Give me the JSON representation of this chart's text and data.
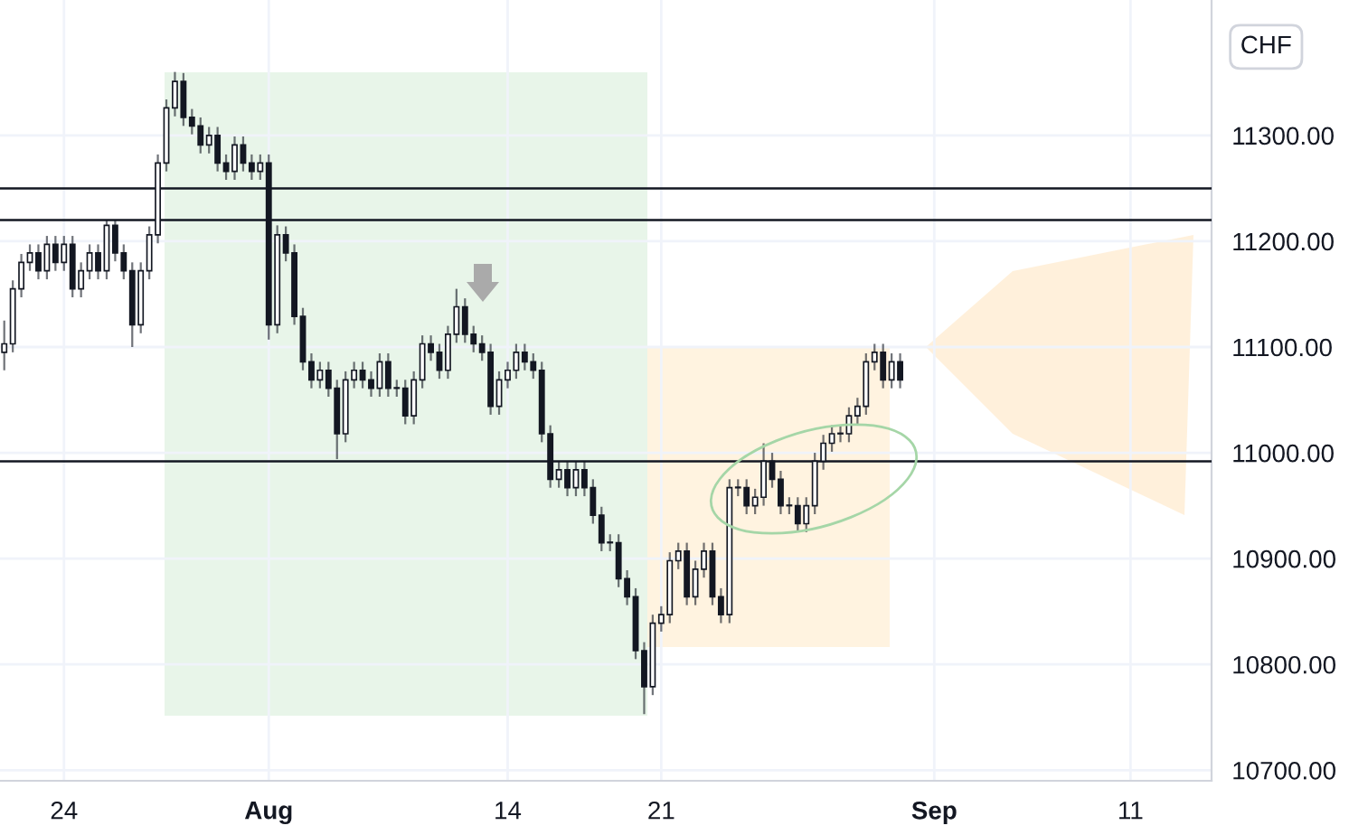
{
  "chart_data": {
    "type": "candlestick",
    "ylabel": "CHF",
    "categories": [
      null,
      null,
      null,
      null,
      null,
      null,
      null,
      "24",
      null,
      null,
      null,
      null,
      null,
      null,
      null,
      null,
      null,
      null,
      null,
      null,
      null,
      null,
      null,
      null,
      null,
      null,
      null,
      null,
      null,
      null,
      null,
      "Aug",
      null,
      null,
      null,
      null,
      null,
      null,
      null,
      null,
      null,
      null,
      null,
      null,
      null,
      null,
      null,
      null,
      null,
      null,
      null,
      null,
      null,
      null,
      null,
      null,
      null,
      null,
      null,
      "14",
      null,
      null,
      null,
      null,
      null,
      null,
      null,
      null,
      null,
      null,
      null,
      null,
      null,
      null,
      null,
      null,
      null,
      "21",
      null,
      null,
      null,
      null,
      null,
      null,
      null,
      null,
      null,
      null,
      null,
      null,
      null,
      null,
      null,
      null,
      null,
      null,
      null,
      null,
      null,
      null,
      null,
      null,
      null,
      null,
      null,
      null,
      null,
      null,
      null,
      "Sep",
      null,
      null,
      null,
      null,
      null,
      null,
      null,
      null,
      null,
      null,
      null,
      null,
      null,
      null,
      null,
      null,
      null,
      null,
      null,
      null,
      null,
      null,
      "11",
      null,
      null,
      null,
      null,
      null,
      null,
      null,
      null,
      null
    ],
    "series": [
      {
        "color": "#131722",
        "ohlc": [
          [
            11095,
            11125,
            11078,
            11103
          ],
          [
            11103,
            11163,
            11095,
            11155
          ],
          [
            11155,
            11188,
            11147,
            11180
          ],
          [
            11180,
            11197,
            11172,
            11189
          ],
          [
            11189,
            11197,
            11164,
            11172
          ],
          [
            11172,
            11205,
            11164,
            11197
          ],
          [
            11197,
            11205,
            11172,
            11180
          ],
          [
            11180,
            11205,
            11172,
            11197
          ],
          [
            11197,
            11205,
            11147,
            11155
          ],
          [
            11155,
            11180,
            11147,
            11172
          ],
          [
            11172,
            11197,
            11164,
            11189
          ],
          [
            11189,
            11197,
            11164,
            11172
          ],
          [
            11172,
            11220,
            11164,
            11215
          ],
          [
            11215,
            11220,
            11181,
            11189
          ],
          [
            11189,
            11197,
            11164,
            11172
          ],
          [
            11172,
            11180,
            11100,
            11121
          ],
          [
            11121,
            11180,
            11113,
            11172
          ],
          [
            11172,
            11214,
            11164,
            11206
          ],
          [
            11206,
            11282,
            11198,
            11274
          ],
          [
            11274,
            11334,
            11266,
            11326
          ],
          [
            11326,
            11360,
            11318,
            11351
          ],
          [
            11351,
            11359,
            11309,
            11317
          ],
          [
            11317,
            11325,
            11301,
            11309
          ],
          [
            11309,
            11317,
            11283,
            11291
          ],
          [
            11291,
            11308,
            11283,
            11300
          ],
          [
            11300,
            11308,
            11266,
            11274
          ],
          [
            11274,
            11282,
            11258,
            11266
          ],
          [
            11266,
            11299,
            11258,
            11291
          ],
          [
            11291,
            11299,
            11266,
            11274
          ],
          [
            11274,
            11282,
            11258,
            11266
          ],
          [
            11266,
            11282,
            11258,
            11274
          ],
          [
            11274,
            11282,
            11107,
            11121
          ],
          [
            11121,
            11215,
            11113,
            11206
          ],
          [
            11206,
            11214,
            11181,
            11189
          ],
          [
            11189,
            11197,
            11121,
            11129
          ],
          [
            11129,
            11137,
            11078,
            11086
          ],
          [
            11086,
            11094,
            11061,
            11069
          ],
          [
            11069,
            11086,
            11061,
            11078
          ],
          [
            11078,
            11086,
            11053,
            11061
          ],
          [
            11061,
            11069,
            10994,
            11018
          ],
          [
            11018,
            11077,
            11010,
            11069
          ],
          [
            11069,
            11086,
            11061,
            11078
          ],
          [
            11078,
            11086,
            11061,
            11069
          ],
          [
            11069,
            11077,
            11053,
            11061
          ],
          [
            11061,
            11094,
            11053,
            11086
          ],
          [
            11086,
            11094,
            11053,
            11061
          ],
          [
            11061,
            11069,
            11053,
            11061
          ],
          [
            11061,
            11069,
            11027,
            11035
          ],
          [
            11035,
            11077,
            11027,
            11069
          ],
          [
            11069,
            11111,
            11061,
            11103
          ],
          [
            11103,
            11111,
            11087,
            11095
          ],
          [
            11095,
            11103,
            11070,
            11078
          ],
          [
            11078,
            11120,
            11070,
            11112
          ],
          [
            11112,
            11155,
            11104,
            11138
          ],
          [
            11138,
            11146,
            11104,
            11112
          ],
          [
            11112,
            11120,
            11095,
            11103
          ],
          [
            11103,
            11111,
            11087,
            11095
          ],
          [
            11095,
            11103,
            11036,
            11044
          ],
          [
            11044,
            11077,
            11036,
            11069
          ],
          [
            11069,
            11086,
            11061,
            11078
          ],
          [
            11078,
            11103,
            11070,
            11095
          ],
          [
            11095,
            11103,
            11078,
            11086
          ],
          [
            11086,
            11094,
            11070,
            11078
          ],
          [
            11078,
            11086,
            11010,
            11018
          ],
          [
            11018,
            11026,
            10967,
            10975
          ],
          [
            10975,
            10992,
            10967,
            10984
          ],
          [
            10984,
            10992,
            10959,
            10967
          ],
          [
            10967,
            10992,
            10959,
            10984
          ],
          [
            10984,
            10992,
            10959,
            10967
          ],
          [
            10967,
            10975,
            10933,
            10941
          ],
          [
            10941,
            10949,
            10907,
            10915
          ],
          [
            10915,
            10923,
            10907,
            10915
          ],
          [
            10915,
            10923,
            10873,
            10881
          ],
          [
            10881,
            10889,
            10856,
            10864
          ],
          [
            10864,
            10872,
            10805,
            10813
          ],
          [
            10813,
            10821,
            10753,
            10779
          ],
          [
            10779,
            10847,
            10771,
            10839
          ],
          [
            10839,
            10855,
            10831,
            10847
          ],
          [
            10847,
            10906,
            10839,
            10898
          ],
          [
            10898,
            10915,
            10890,
            10907
          ],
          [
            10907,
            10915,
            10856,
            10864
          ],
          [
            10864,
            10898,
            10856,
            10890
          ],
          [
            10890,
            10915,
            10882,
            10907
          ],
          [
            10907,
            10915,
            10856,
            10864
          ],
          [
            10864,
            10872,
            10839,
            10847
          ],
          [
            10847,
            10975,
            10839,
            10967
          ],
          [
            10967,
            10975,
            10959,
            10967
          ],
          [
            10967,
            10975,
            10942,
            10950
          ],
          [
            10950,
            10966,
            10942,
            10958
          ],
          [
            10958,
            11009,
            10950,
            10992
          ],
          [
            10992,
            11000,
            10967,
            10975
          ],
          [
            10975,
            10983,
            10942,
            10950
          ],
          [
            10950,
            10958,
            10942,
            10950
          ],
          [
            10950,
            10958,
            10925,
            10933
          ],
          [
            10933,
            10958,
            10925,
            10950
          ],
          [
            10950,
            11000,
            10942,
            10992
          ],
          [
            10992,
            11017,
            10984,
            11009
          ],
          [
            11009,
            11026,
            11001,
            11018
          ],
          [
            11018,
            11026,
            11010,
            11018
          ],
          [
            11018,
            11043,
            11010,
            11035
          ],
          [
            11035,
            11052,
            11027,
            11044
          ],
          [
            11044,
            11094,
            11036,
            11086
          ],
          [
            11086,
            11103,
            11078,
            11095
          ],
          [
            11095,
            11103,
            11061,
            11069
          ],
          [
            11069,
            11094,
            11061,
            11086
          ],
          [
            11086,
            11094,
            11061,
            11069
          ],
          null,
          null,
          null,
          null,
          null,
          null,
          null,
          null,
          null,
          null,
          null,
          null,
          null,
          null,
          null,
          null,
          null,
          null,
          null,
          null,
          null,
          null,
          null,
          null,
          null,
          null,
          null,
          null,
          null,
          null,
          null,
          null,
          null,
          null,
          null,
          null
        ]
      }
    ],
    "ylim": [
      10690,
      11428
    ],
    "yticks": [
      {
        "value": 10700,
        "label": "10700.00"
      },
      {
        "value": 10800,
        "label": "10800.00"
      },
      {
        "value": 10900,
        "label": "10900.00"
      },
      {
        "value": 11000,
        "label": "11000.00"
      },
      {
        "value": 11100,
        "label": "11100.00"
      },
      {
        "value": 11200,
        "label": "11200.00"
      },
      {
        "value": 11300,
        "label": "11300.00"
      }
    ],
    "ref_lines": [
      {
        "axis": "y",
        "value": 11250,
        "color": "#131722"
      },
      {
        "axis": "y",
        "value": 11220,
        "color": "#131722"
      },
      {
        "axis": "y",
        "value": 10992,
        "color": "#131722"
      }
    ],
    "grid": true
  }
}
